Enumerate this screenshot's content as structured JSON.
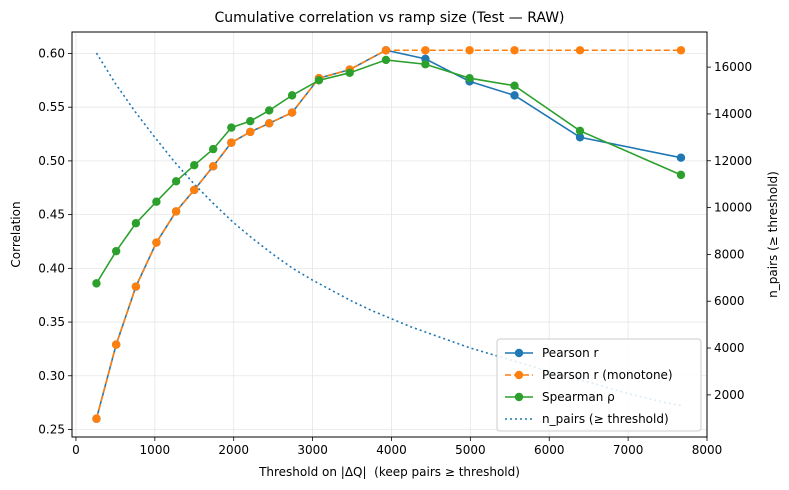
{
  "chart_data": {
    "type": "line",
    "title": "Cumulative correlation vs ramp size (Test — RAW)",
    "xlabel": "Threshold on |ΔQ|  (keep pairs ≥ threshold)",
    "ylabel": "Correlation",
    "y2label": "n_pairs (≥ threshold)",
    "xlim": [
      -50,
      8000
    ],
    "ylim": [
      0.243,
      0.62
    ],
    "y2lim": [
      200,
      17500
    ],
    "xticks": [
      0,
      1000,
      2000,
      3000,
      4000,
      5000,
      6000,
      7000,
      8000
    ],
    "yticks": [
      0.25,
      0.3,
      0.35,
      0.4,
      0.45,
      0.5,
      0.55,
      0.6
    ],
    "y2ticks": [
      2000,
      4000,
      6000,
      8000,
      10000,
      12000,
      14000,
      16000
    ],
    "x": [
      260,
      510,
      760,
      1020,
      1270,
      1500,
      1740,
      1970,
      2210,
      2450,
      2740,
      3080,
      3470,
      3930,
      4430,
      4990,
      5560,
      6390,
      7670
    ],
    "grid": true,
    "legend_position": "lower right",
    "series": [
      {
        "name": "Pearson r",
        "axis": "left",
        "color": "#1f77b4",
        "style": "solid",
        "marker": true,
        "values": [
          0.26,
          0.329,
          0.383,
          0.424,
          0.453,
          0.473,
          0.495,
          0.517,
          0.527,
          0.535,
          0.545,
          0.577,
          0.585,
          0.603,
          0.595,
          0.574,
          0.561,
          0.522,
          0.503
        ]
      },
      {
        "name": "Pearson r (monotone)",
        "axis": "left",
        "color": "#ff7f0e",
        "style": "dashed",
        "marker": true,
        "values": [
          0.26,
          0.329,
          0.383,
          0.424,
          0.453,
          0.473,
          0.495,
          0.517,
          0.527,
          0.535,
          0.545,
          0.577,
          0.585,
          0.603,
          0.603,
          0.603,
          0.603,
          0.603,
          0.603
        ]
      },
      {
        "name": "Spearman ρ",
        "axis": "left",
        "color": "#2ca02c",
        "style": "solid",
        "marker": true,
        "values": [
          0.386,
          0.416,
          0.442,
          0.462,
          0.481,
          0.496,
          0.511,
          0.531,
          0.537,
          0.547,
          0.561,
          0.575,
          0.582,
          0.594,
          0.59,
          0.577,
          0.57,
          0.528,
          0.487
        ]
      },
      {
        "name": "n_pairs (≥ threshold)",
        "axis": "right",
        "color": "#1f77b4",
        "style": "dotted",
        "marker": false,
        "x": [
          260,
          500,
          750,
          1000,
          1250,
          1500,
          1750,
          2000,
          2250,
          2500,
          2750,
          3000,
          3250,
          3500,
          3750,
          4000,
          4250,
          4500,
          4750,
          5000,
          5250,
          5500,
          5750,
          6000,
          6250,
          6500,
          6750,
          7000,
          7250,
          7500,
          7670
        ],
        "values": [
          16600,
          15300,
          14100,
          13000,
          11950,
          11000,
          10150,
          9350,
          8650,
          8000,
          7400,
          6900,
          6450,
          6000,
          5600,
          5250,
          4900,
          4600,
          4300,
          4000,
          3750,
          3500,
          3250,
          3000,
          2750,
          2550,
          2300,
          2050,
          1850,
          1650,
          1550
        ]
      }
    ]
  }
}
